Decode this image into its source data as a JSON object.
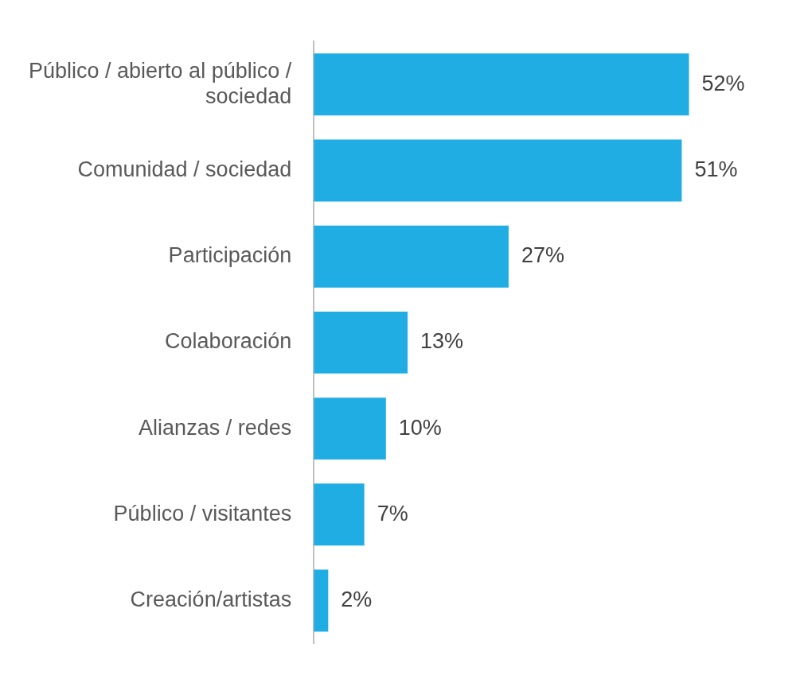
{
  "chart_data": {
    "type": "bar",
    "orientation": "horizontal",
    "categories": [
      "Público / abierto al público / sociedad",
      "Comunidad / sociedad",
      "Participación",
      "Colaboración",
      "Alianzas / redes",
      "Público / visitantes",
      "Creación/artistas"
    ],
    "values": [
      52,
      51,
      27,
      13,
      10,
      7,
      2
    ],
    "value_labels": [
      "52%",
      "51%",
      "27%",
      "13%",
      "10%",
      "7%",
      "2%"
    ],
    "color": "#1fade4",
    "legend": false
  }
}
